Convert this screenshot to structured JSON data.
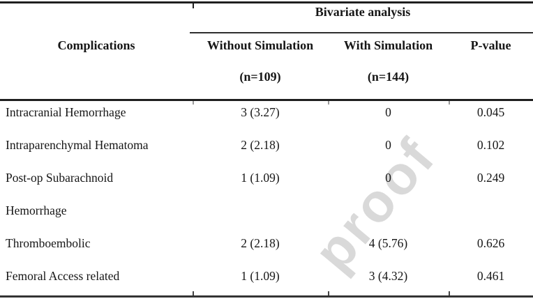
{
  "watermark": {
    "text": "proof",
    "color": "#d9d9d9"
  },
  "colors": {
    "rule": "#1f1f1f",
    "text": "#161616",
    "background": "#ffffff"
  },
  "table": {
    "spanner_header": "Bivariate analysis",
    "col_headers": {
      "complications": "Complications",
      "without_simulation": "Without Simulation",
      "with_simulation": "With Simulation",
      "p_value": "P-value"
    },
    "subheaders": {
      "without_n": "(n=109)",
      "with_n": "(n=144)"
    },
    "rows": [
      {
        "label": "Intracranial Hemorrhage",
        "without": "3 (3.27)",
        "with": "0",
        "p": "0.045"
      },
      {
        "label": "Intraparenchymal Hematoma",
        "without": "2 (2.18)",
        "with": "0",
        "p": "0.102"
      },
      {
        "label": "Post-op Subarachnoid",
        "without": "1 (1.09)",
        "with": "0",
        "p": "0.249"
      },
      {
        "label": "Hemorrhage",
        "without": "",
        "with": "",
        "p": ""
      },
      {
        "label": "Thromboembolic",
        "without": "2 (2.18)",
        "with": "4 (5.76)",
        "p": "0.626"
      },
      {
        "label": "Femoral Access related",
        "without": "1 (1.09)",
        "with": "3 (4.32)",
        "p": "0.461"
      }
    ]
  }
}
